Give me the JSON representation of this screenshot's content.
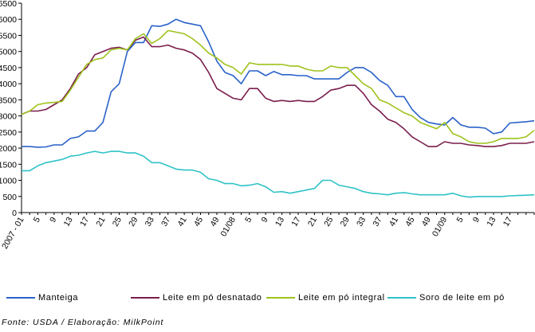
{
  "chart_data": {
    "type": "line",
    "title": "",
    "xlabel": "",
    "ylabel": "",
    "ylim": [
      0,
      6500
    ],
    "y_ticks": [
      0,
      500,
      1000,
      1500,
      2000,
      2500,
      3000,
      3500,
      4000,
      4500,
      5000,
      5500,
      6000,
      6500
    ],
    "x_ticks": [
      {
        "i": 0,
        "label": "2007 - 01"
      },
      {
        "i": 2,
        "label": "5"
      },
      {
        "i": 4,
        "label": "9"
      },
      {
        "i": 6,
        "label": "13"
      },
      {
        "i": 8,
        "label": "17"
      },
      {
        "i": 10,
        "label": "21"
      },
      {
        "i": 12,
        "label": "25"
      },
      {
        "i": 14,
        "label": "29"
      },
      {
        "i": 16,
        "label": "33"
      },
      {
        "i": 18,
        "label": "37"
      },
      {
        "i": 20,
        "label": "41"
      },
      {
        "i": 22,
        "label": "45"
      },
      {
        "i": 24,
        "label": "49"
      },
      {
        "i": 26,
        "label": "01/08"
      },
      {
        "i": 28,
        "label": "5"
      },
      {
        "i": 30,
        "label": "9"
      },
      {
        "i": 32,
        "label": "13"
      },
      {
        "i": 34,
        "label": "17"
      },
      {
        "i": 36,
        "label": "21"
      },
      {
        "i": 38,
        "label": "25"
      },
      {
        "i": 40,
        "label": "29"
      },
      {
        "i": 42,
        "label": "33"
      },
      {
        "i": 44,
        "label": "37"
      },
      {
        "i": 46,
        "label": "41"
      },
      {
        "i": 48,
        "label": "45"
      },
      {
        "i": 50,
        "label": "49"
      },
      {
        "i": 52,
        "label": "01/09"
      },
      {
        "i": 54,
        "label": "5"
      },
      {
        "i": 56,
        "label": "9"
      },
      {
        "i": 58,
        "label": "13"
      },
      {
        "i": 60,
        "label": "17"
      }
    ],
    "grid": false,
    "legend_position": "bottom",
    "series": [
      {
        "name": "Manteiga",
        "color": "#2a62c9",
        "values": [
          2050,
          2050,
          2030,
          2040,
          2100,
          2100,
          2300,
          2350,
          2530,
          2530,
          2800,
          3750,
          4000,
          5000,
          5280,
          5280,
          5800,
          5780,
          5850,
          6000,
          5900,
          5850,
          5800,
          5300,
          4700,
          4350,
          4250,
          4000,
          4400,
          4400,
          4250,
          4380,
          4280,
          4280,
          4250,
          4250,
          4150,
          4150,
          4150,
          4150,
          4350,
          4500,
          4500,
          4350,
          4100,
          3950,
          3600,
          3600,
          3200,
          2950,
          2800,
          2750,
          2720,
          2950,
          2720,
          2650,
          2650,
          2620,
          2450,
          2500,
          2780,
          2800,
          2820,
          2850
        ]
      },
      {
        "name": "Leite em pó desnatado",
        "color": "#7a1e4c",
        "values": [
          3050,
          3150,
          3150,
          3200,
          3350,
          3500,
          3850,
          4300,
          4500,
          4900,
          5000,
          5100,
          5130,
          5050,
          5350,
          5450,
          5150,
          5150,
          5200,
          5100,
          5050,
          4950,
          4750,
          4350,
          3850,
          3700,
          3550,
          3500,
          3850,
          3850,
          3550,
          3450,
          3480,
          3450,
          3480,
          3450,
          3450,
          3600,
          3800,
          3850,
          3950,
          3950,
          3700,
          3350,
          3150,
          2900,
          2800,
          2600,
          2350,
          2200,
          2050,
          2050,
          2200,
          2150,
          2150,
          2100,
          2080,
          2050,
          2050,
          2080,
          2150,
          2150,
          2150,
          2200
        ]
      },
      {
        "name": "Leite em pó integral",
        "color": "#9ec21c",
        "values": [
          3050,
          3150,
          3350,
          3400,
          3420,
          3450,
          3800,
          4200,
          4600,
          4750,
          4800,
          5050,
          5100,
          5050,
          5400,
          5550,
          5250,
          5400,
          5650,
          5600,
          5550,
          5400,
          5200,
          4950,
          4800,
          4600,
          4500,
          4300,
          4650,
          4600,
          4600,
          4600,
          4600,
          4550,
          4550,
          4450,
          4400,
          4400,
          4550,
          4500,
          4500,
          4250,
          4000,
          3850,
          3500,
          3400,
          3250,
          3100,
          3000,
          2800,
          2700,
          2600,
          2800,
          2450,
          2350,
          2200,
          2150,
          2150,
          2200,
          2300,
          2300,
          2300,
          2350,
          2550
        ]
      },
      {
        "name": "Soro de leite em pó",
        "color": "#2fc2c6",
        "values": [
          1300,
          1300,
          1450,
          1550,
          1600,
          1650,
          1750,
          1780,
          1850,
          1900,
          1850,
          1900,
          1900,
          1850,
          1850,
          1750,
          1550,
          1550,
          1450,
          1350,
          1320,
          1320,
          1250,
          1050,
          1000,
          900,
          900,
          830,
          850,
          900,
          800,
          630,
          650,
          600,
          650,
          700,
          750,
          1000,
          1000,
          850,
          800,
          750,
          650,
          600,
          580,
          550,
          600,
          620,
          580,
          550,
          550,
          550,
          550,
          600,
          520,
          480,
          500,
          500,
          500,
          500,
          520,
          530,
          540,
          550
        ]
      }
    ]
  },
  "source": "Fonte: USDA / Elaboração: MilkPoint"
}
